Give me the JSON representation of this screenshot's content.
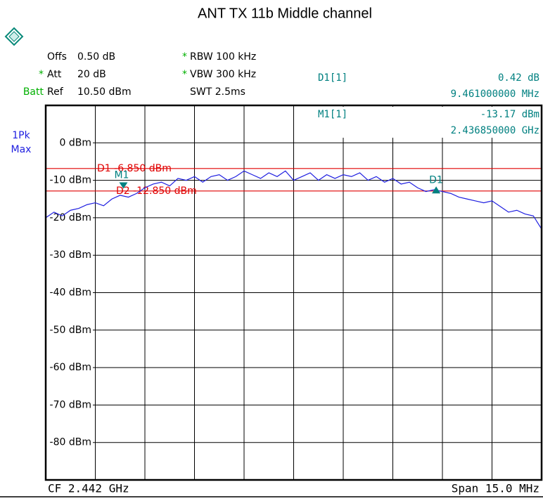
{
  "chart_data": {
    "type": "line",
    "title": "ANT TX 11b Middle channel",
    "settings_left": [
      {
        "label": "Offs",
        "value": "0.50 dB"
      },
      {
        "flag": "*",
        "label": "Att",
        "value": "20 dB"
      },
      {
        "flag": "Batt",
        "label": "Ref",
        "value": "10.50 dBm"
      }
    ],
    "settings_mid": [
      {
        "flag": "*",
        "text": "RBW 100 kHz"
      },
      {
        "flag": "*",
        "text": "VBW 300 kHz"
      },
      {
        "text": "SWT 2.5ms"
      }
    ],
    "marker_table": [
      {
        "name": "D1[1]",
        "level": "0.42 dB",
        "position": "9.461000000 MHz"
      },
      {
        "name": "M1[1]",
        "level": "-13.17 dBm",
        "position": "2.436850000 GHz"
      }
    ],
    "trace_label": [
      "1Pk",
      "Max"
    ],
    "footer": {
      "left": "CF 2.442 GHz",
      "right": "Span 15.0 MHz"
    },
    "xlim": [
      2.4345,
      2.4495
    ],
    "ylim": [
      -90,
      10
    ],
    "yticks": [
      {
        "value": 0,
        "label": "0 dBm"
      },
      {
        "value": -10,
        "label": "-10 dBm"
      },
      {
        "value": -20,
        "label": "-20 dBm"
      },
      {
        "value": -30,
        "label": "-30 dBm"
      },
      {
        "value": -40,
        "label": "-40 dBm"
      },
      {
        "value": -50,
        "label": "-50 dBm"
      },
      {
        "value": -60,
        "label": "-60 dBm"
      },
      {
        "value": -70,
        "label": "-70 dBm"
      },
      {
        "value": -80,
        "label": "-80 dBm"
      }
    ],
    "grid": true,
    "x": [
      2.4345,
      2.43475,
      2.435,
      2.43525,
      2.4355,
      2.43575,
      2.436,
      2.43625,
      2.4365,
      2.43675,
      2.437,
      2.43725,
      2.4375,
      2.43775,
      2.438,
      2.43825,
      2.4385,
      2.43875,
      2.439,
      2.43925,
      2.4395,
      2.43975,
      2.44,
      2.44025,
      2.4405,
      2.44075,
      2.441,
      2.44125,
      2.4415,
      2.44175,
      2.442,
      2.44225,
      2.4425,
      2.44275,
      2.443,
      2.44325,
      2.4435,
      2.44375,
      2.444,
      2.44425,
      2.4445,
      2.44475,
      2.445,
      2.44525,
      2.4455,
      2.44575,
      2.446,
      2.44625,
      2.4465,
      2.44675,
      2.447,
      2.44725,
      2.4475,
      2.44775,
      2.448,
      2.44825,
      2.4485,
      2.44875,
      2.449,
      2.44925,
      2.4495
    ],
    "series": [
      {
        "color": "#1f1fe0",
        "values": [
          -20,
          -18.5,
          -19.5,
          -18,
          -17.5,
          -16.5,
          -16,
          -16.8,
          -15,
          -14,
          -14.5,
          -13.5,
          -12,
          -11,
          -10.5,
          -11.5,
          -9.5,
          -10,
          -9,
          -10.5,
          -9,
          -8.5,
          -10,
          -9,
          -7.5,
          -8.5,
          -9.5,
          -8,
          -9,
          -7.5,
          -10,
          -9,
          -8,
          -10,
          -8.5,
          -9.5,
          -8.5,
          -9,
          -8,
          -10,
          -9,
          -10.5,
          -9.5,
          -11,
          -10.5,
          -12,
          -13,
          -12.5,
          -13,
          -13.5,
          -14.5,
          -15,
          -15.5,
          -16,
          -15.5,
          -17,
          -18.5,
          -18,
          -19,
          -19.5,
          -23
        ]
      }
    ],
    "display_lines": [
      {
        "label": "D1 -6.850 dBm",
        "value": -6.85,
        "color": "#e00000"
      },
      {
        "label": "D2 -12.850 dBm",
        "value": -12.85,
        "color": "#e00000"
      }
    ],
    "markers": [
      {
        "label": "M1",
        "x": 2.43685,
        "y": -13.17,
        "color": "#008080",
        "shape": "down"
      },
      {
        "label": "D1",
        "x": 2.446311,
        "y": -12.75,
        "color": "#008080",
        "shape": "up"
      }
    ]
  }
}
